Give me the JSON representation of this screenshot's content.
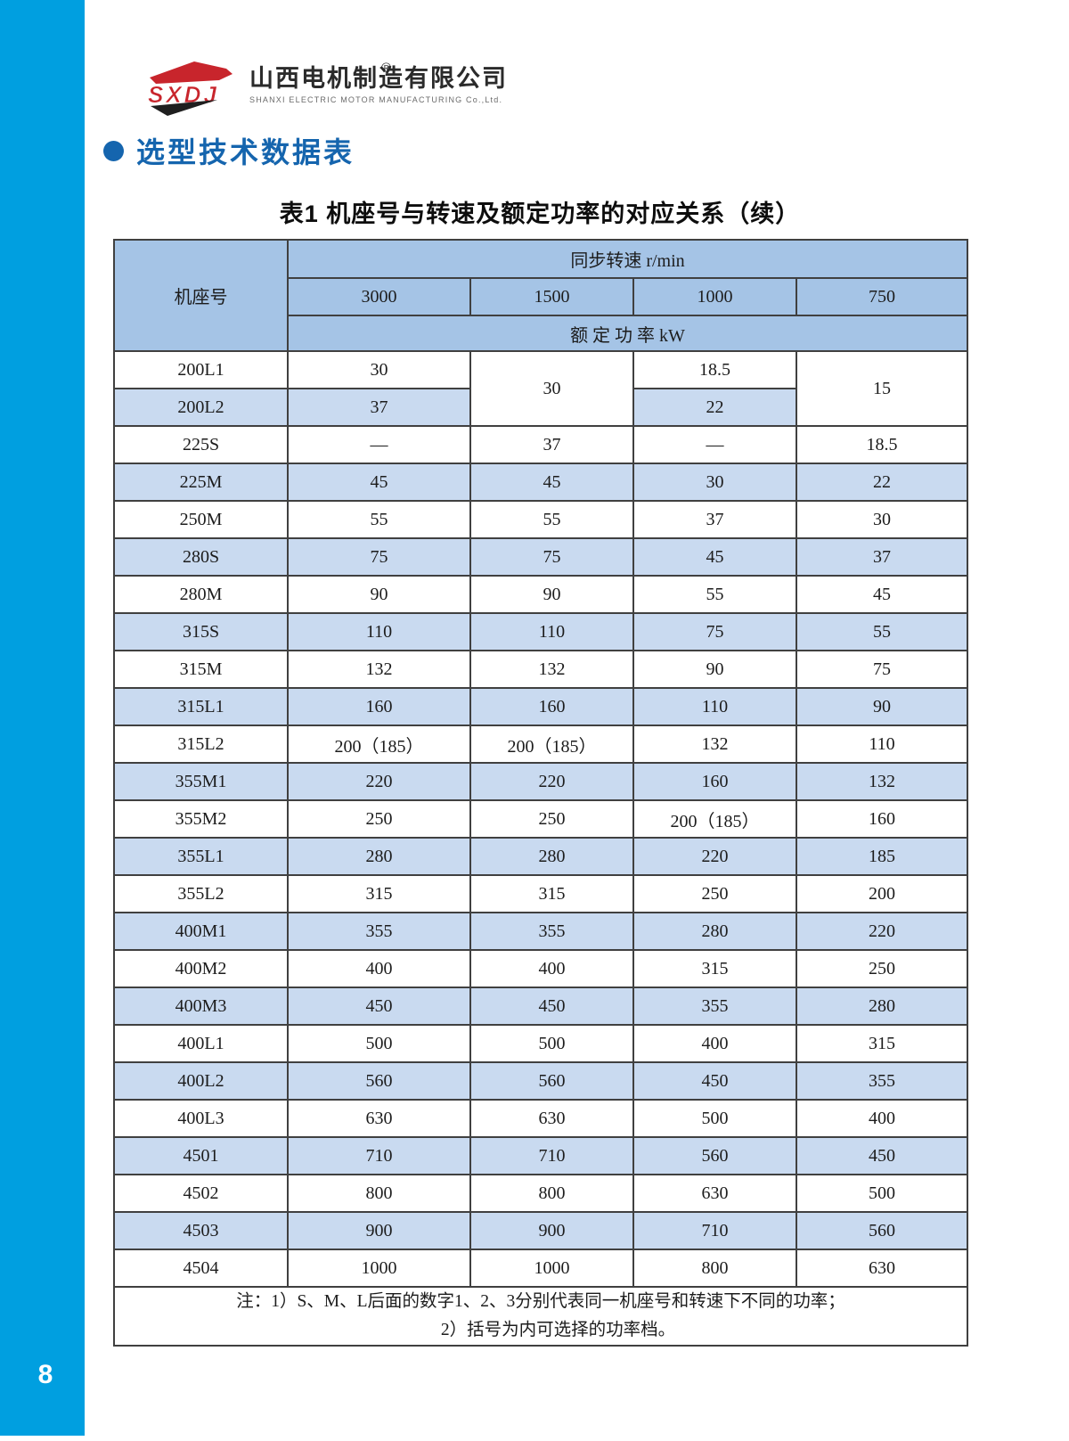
{
  "page": {
    "number": "8"
  },
  "logo": {
    "mark_text": "SXDJ",
    "registered": "®",
    "company_cn": "山西电机制造有限公司",
    "company_en": "SHANXI ELECTRIC MOTOR MANUFACTURING Co.,Ltd.",
    "red": "#c8252c",
    "black": "#1f1f1f"
  },
  "section": {
    "heading": "选型技术数据表"
  },
  "table": {
    "title": "表1 机座号与转速及额定功率的对应关系（续）",
    "header": {
      "frame": "机座号",
      "speed_group": "同步转速 r/min",
      "speeds": [
        "3000",
        "1500",
        "1000",
        "750"
      ],
      "power_group": "额 定 功 率 kW"
    },
    "rows": [
      {
        "striped": false,
        "cells": [
          {
            "v": "200L1"
          },
          {
            "v": "30"
          },
          {
            "v": "30",
            "rowspan": 2,
            "white": true
          },
          {
            "v": "18.5"
          },
          {
            "v": "15",
            "rowspan": 2,
            "white": true
          }
        ]
      },
      {
        "striped": true,
        "cells": [
          {
            "v": "200L2"
          },
          {
            "v": "37"
          },
          {
            "v": "22"
          }
        ]
      },
      {
        "striped": false,
        "cells": [
          {
            "v": "225S"
          },
          {
            "v": "—"
          },
          {
            "v": "37"
          },
          {
            "v": "—"
          },
          {
            "v": "18.5"
          }
        ]
      },
      {
        "striped": true,
        "cells": [
          {
            "v": "225M"
          },
          {
            "v": "45"
          },
          {
            "v": "45"
          },
          {
            "v": "30"
          },
          {
            "v": "22"
          }
        ]
      },
      {
        "striped": false,
        "cells": [
          {
            "v": "250M"
          },
          {
            "v": "55"
          },
          {
            "v": "55"
          },
          {
            "v": "37"
          },
          {
            "v": "30"
          }
        ]
      },
      {
        "striped": true,
        "cells": [
          {
            "v": "280S"
          },
          {
            "v": "75"
          },
          {
            "v": "75"
          },
          {
            "v": "45"
          },
          {
            "v": "37"
          }
        ]
      },
      {
        "striped": false,
        "cells": [
          {
            "v": "280M"
          },
          {
            "v": "90"
          },
          {
            "v": "90"
          },
          {
            "v": "55"
          },
          {
            "v": "45"
          }
        ]
      },
      {
        "striped": true,
        "cells": [
          {
            "v": "315S"
          },
          {
            "v": "110"
          },
          {
            "v": "110"
          },
          {
            "v": "75"
          },
          {
            "v": "55"
          }
        ]
      },
      {
        "striped": false,
        "cells": [
          {
            "v": "315M"
          },
          {
            "v": "132"
          },
          {
            "v": "132"
          },
          {
            "v": "90"
          },
          {
            "v": "75"
          }
        ]
      },
      {
        "striped": true,
        "cells": [
          {
            "v": "315L1"
          },
          {
            "v": "160"
          },
          {
            "v": "160"
          },
          {
            "v": "110"
          },
          {
            "v": "90"
          }
        ]
      },
      {
        "striped": false,
        "cells": [
          {
            "v": "315L2"
          },
          {
            "v": "200（185）"
          },
          {
            "v": "200（185）"
          },
          {
            "v": "132"
          },
          {
            "v": "110"
          }
        ]
      },
      {
        "striped": true,
        "cells": [
          {
            "v": "355M1"
          },
          {
            "v": "220"
          },
          {
            "v": "220"
          },
          {
            "v": "160"
          },
          {
            "v": "132"
          }
        ]
      },
      {
        "striped": false,
        "cells": [
          {
            "v": "355M2"
          },
          {
            "v": "250"
          },
          {
            "v": "250"
          },
          {
            "v": "200（185）"
          },
          {
            "v": "160"
          }
        ]
      },
      {
        "striped": true,
        "cells": [
          {
            "v": "355L1"
          },
          {
            "v": "280"
          },
          {
            "v": "280"
          },
          {
            "v": "220"
          },
          {
            "v": "185"
          }
        ]
      },
      {
        "striped": false,
        "cells": [
          {
            "v": "355L2"
          },
          {
            "v": "315"
          },
          {
            "v": "315"
          },
          {
            "v": "250"
          },
          {
            "v": "200"
          }
        ]
      },
      {
        "striped": true,
        "cells": [
          {
            "v": "400M1"
          },
          {
            "v": "355"
          },
          {
            "v": "355"
          },
          {
            "v": "280"
          },
          {
            "v": "220"
          }
        ]
      },
      {
        "striped": false,
        "cells": [
          {
            "v": "400M2"
          },
          {
            "v": "400"
          },
          {
            "v": "400"
          },
          {
            "v": "315"
          },
          {
            "v": "250"
          }
        ]
      },
      {
        "striped": true,
        "cells": [
          {
            "v": "400M3"
          },
          {
            "v": "450"
          },
          {
            "v": "450"
          },
          {
            "v": "355"
          },
          {
            "v": "280"
          }
        ]
      },
      {
        "striped": false,
        "cells": [
          {
            "v": "400L1"
          },
          {
            "v": "500"
          },
          {
            "v": "500"
          },
          {
            "v": "400"
          },
          {
            "v": "315"
          }
        ]
      },
      {
        "striped": true,
        "cells": [
          {
            "v": "400L2"
          },
          {
            "v": "560"
          },
          {
            "v": "560"
          },
          {
            "v": "450"
          },
          {
            "v": "355"
          }
        ]
      },
      {
        "striped": false,
        "cells": [
          {
            "v": "400L3"
          },
          {
            "v": "630"
          },
          {
            "v": "630"
          },
          {
            "v": "500"
          },
          {
            "v": "400"
          }
        ]
      },
      {
        "striped": true,
        "cells": [
          {
            "v": "4501"
          },
          {
            "v": "710"
          },
          {
            "v": "710"
          },
          {
            "v": "560"
          },
          {
            "v": "450"
          }
        ]
      },
      {
        "striped": false,
        "cells": [
          {
            "v": "4502"
          },
          {
            "v": "800"
          },
          {
            "v": "800"
          },
          {
            "v": "630"
          },
          {
            "v": "500"
          }
        ]
      },
      {
        "striped": true,
        "cells": [
          {
            "v": "4503"
          },
          {
            "v": "900"
          },
          {
            "v": "900"
          },
          {
            "v": "710"
          },
          {
            "v": "560"
          }
        ]
      },
      {
        "striped": false,
        "cells": [
          {
            "v": "4504"
          },
          {
            "v": "1000"
          },
          {
            "v": "1000"
          },
          {
            "v": "800"
          },
          {
            "v": "630"
          }
        ]
      }
    ],
    "notes": [
      "注：1）S、M、L后面的数字1、2、3分别代表同一机座号和转速下不同的功率；",
      "2）括号为内可选择的功率档。"
    ]
  },
  "colors": {
    "sidebar": "#009fe0",
    "heading_blue": "#1565ae",
    "header_bg": "#a5c4e6",
    "stripe_bg": "#c9daf0",
    "border": "#404040"
  }
}
